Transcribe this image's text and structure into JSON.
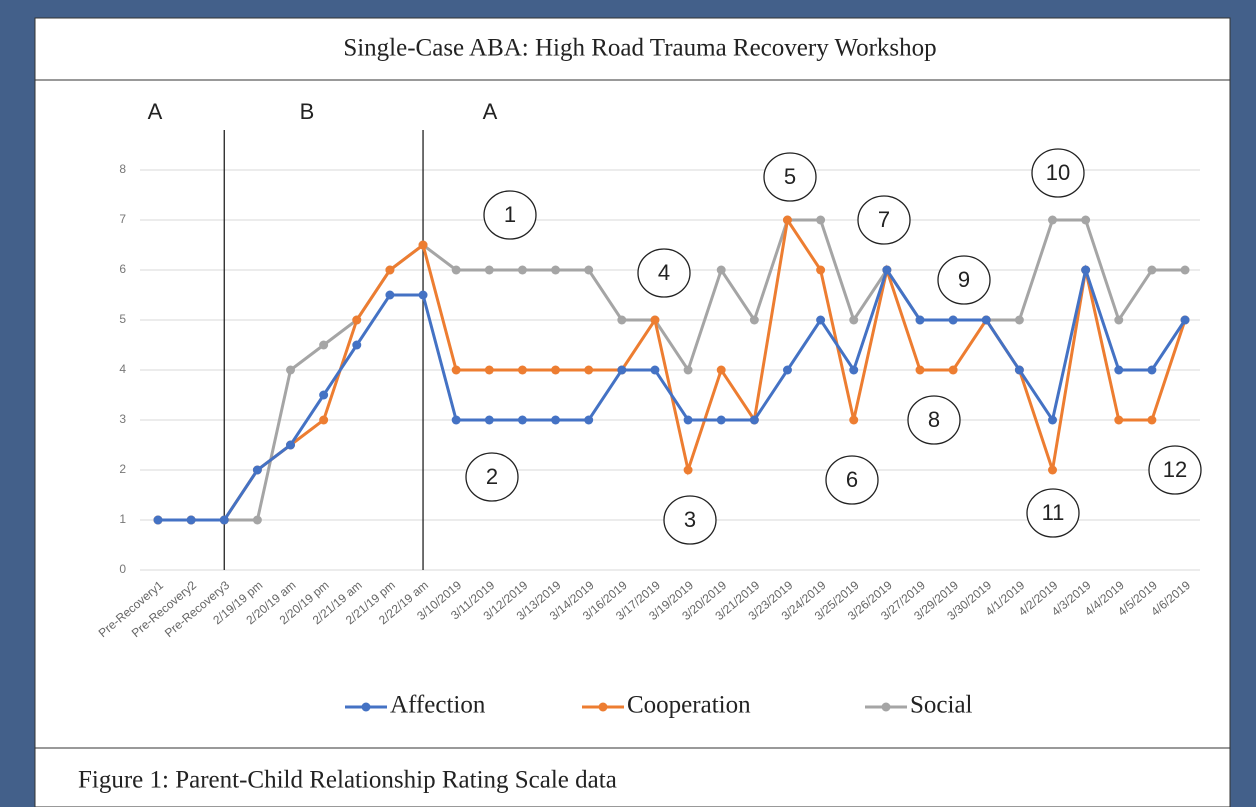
{
  "chart_data": {
    "type": "line",
    "title": "Single-Case ABA: High Road Trauma Recovery Workshop",
    "caption": "Figure 1:  Parent-Child Relationship Rating Scale data",
    "phases": [
      "A",
      "B",
      "A"
    ],
    "annotations": [
      "1",
      "2",
      "3",
      "4",
      "5",
      "6",
      "7",
      "8",
      "9",
      "10",
      "11",
      "12"
    ],
    "categories": [
      "Pre-Recovery1",
      "Pre-Recovery2",
      "Pre-Recovery3",
      "2/19/19 pm",
      "2/20/19 am",
      "2/20/19 pm",
      "2/21/19 am",
      "2/21/19 pm",
      "2/22/19 am",
      "3/10/2019",
      "3/11/2019",
      "3/12/2019",
      "3/13/2019",
      "3/14/2019",
      "3/16/2019",
      "3/17/2019",
      "3/19/2019",
      "3/20/2019",
      "3/21/2019",
      "3/23/2019",
      "3/24/2019",
      "3/25/2019",
      "3/26/2019",
      "3/27/2019",
      "3/29/2019",
      "3/30/2019",
      "4/1/2019",
      "4/2/2019",
      "4/3/2019",
      "4/4/2019",
      "4/5/2019",
      "4/6/2019"
    ],
    "series": [
      {
        "name": "Affection",
        "color": "#4472c4",
        "values": [
          1,
          1,
          1,
          2,
          2.5,
          3.5,
          4.5,
          5.5,
          5.5,
          3,
          3,
          3,
          3,
          3,
          4,
          4,
          3,
          3,
          3,
          4,
          5,
          4,
          6,
          5,
          5,
          5,
          4,
          3,
          6,
          4,
          4,
          5
        ]
      },
      {
        "name": "Cooperation",
        "color": "#ed7d31",
        "values": [
          1,
          1,
          1,
          2,
          2.5,
          3,
          5,
          6,
          6.5,
          4,
          4,
          4,
          4,
          4,
          4,
          5,
          2,
          4,
          3,
          7,
          6,
          3,
          6,
          4,
          4,
          5,
          4,
          2,
          6,
          3,
          3,
          5
        ]
      },
      {
        "name": "Social",
        "color": "#a5a5a5",
        "values": [
          1,
          1,
          1,
          1,
          4,
          4.5,
          5,
          6,
          6.5,
          6,
          6,
          6,
          6,
          6,
          5,
          5,
          4,
          6,
          5,
          7,
          7,
          5,
          6,
          5,
          5,
          5,
          5,
          7,
          7,
          5,
          6,
          6
        ]
      }
    ],
    "ylim": [
      0,
      8
    ],
    "yticks": [
      0,
      1,
      2,
      3,
      4,
      5,
      6,
      7,
      8
    ],
    "grid": true,
    "legend": "bottom"
  }
}
